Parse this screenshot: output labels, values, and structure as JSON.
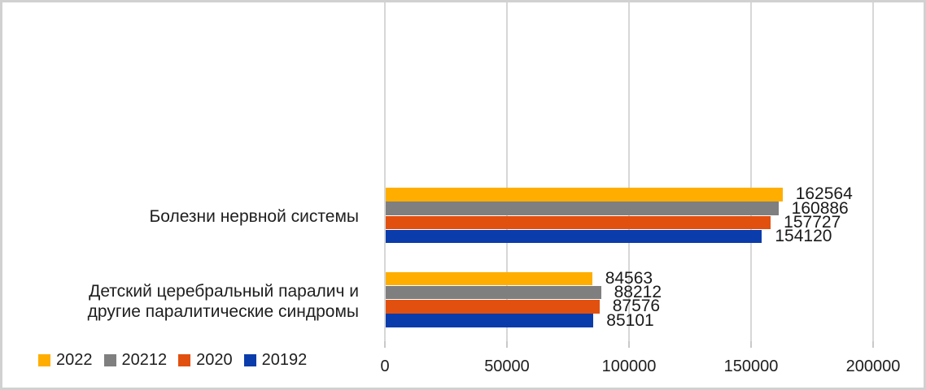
{
  "chart_data": {
    "type": "bar",
    "orientation": "horizontal",
    "title": "",
    "xlabel": "",
    "ylabel": "",
    "categories": [
      "Болезни нервной системы",
      "Детский церебральный паралич и другие паралитические синдромы"
    ],
    "category_label_lines": [
      [
        "Болезни нервной системы"
      ],
      [
        "Детский церебральный паралич и",
        "другие паралитические синдромы"
      ]
    ],
    "series": [
      {
        "name": "2022",
        "color": "#FFAE00",
        "values": [
          162564,
          84563
        ]
      },
      {
        "name": "20212",
        "color": "#7F7F7F",
        "values": [
          160886,
          88212
        ]
      },
      {
        "name": "2020",
        "color": "#E2500F",
        "values": [
          157727,
          87576
        ]
      },
      {
        "name": "20192",
        "color": "#0B3CAB",
        "values": [
          154120,
          85101
        ]
      }
    ],
    "xlim": [
      0,
      200000
    ],
    "x_ticks": [
      0,
      50000,
      100000,
      150000,
      200000
    ],
    "grid": true,
    "data_labels": true,
    "legend_position": "bottom-left"
  },
  "colors": {
    "grid": "#D7D7D7",
    "frame": "#D1D1D1",
    "text": "#1E1E1E",
    "background": "#FFFFFF"
  }
}
